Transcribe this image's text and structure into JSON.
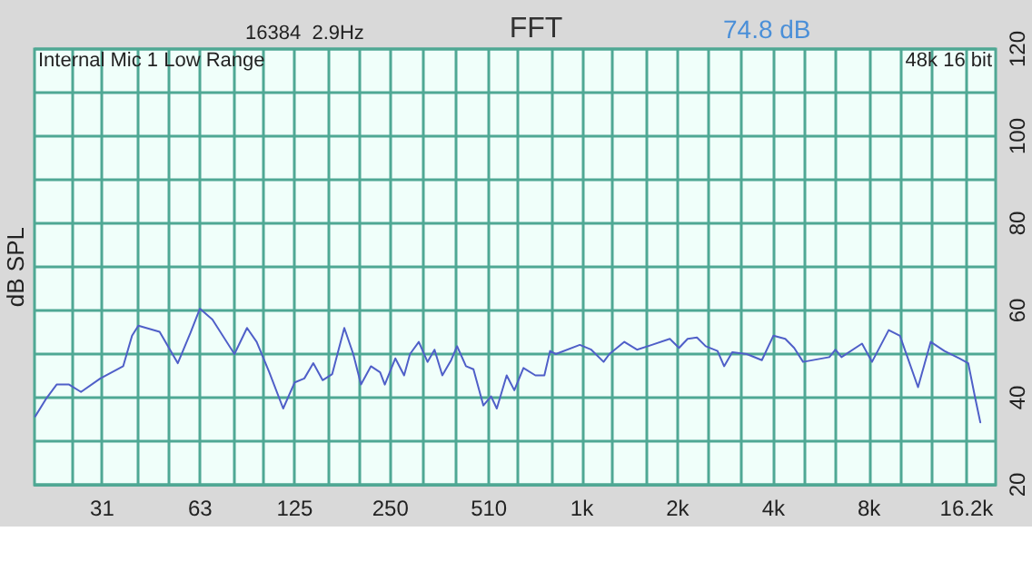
{
  "chart_data": {
    "type": "line",
    "title": "FFT",
    "ylabel": "dB SPL",
    "annotations": [
      "16384  2.9Hz",
      "74.8 dB",
      "Internal Mic 1 Low Range",
      "48k 16 bit"
    ],
    "log": "x",
    "grid": true,
    "marker": "none",
    "line_style": "solid",
    "xlim": [
      19,
      20000
    ],
    "xticks": [
      {
        "value": 25,
        "label": null
      },
      {
        "value": 31,
        "label": "31"
      },
      {
        "value": 40,
        "label": null
      },
      {
        "value": 50,
        "label": null
      },
      {
        "value": 63,
        "label": "63"
      },
      {
        "value": 80,
        "label": null
      },
      {
        "value": 100,
        "label": null
      },
      {
        "value": 125,
        "label": "125"
      },
      {
        "value": 160,
        "label": null
      },
      {
        "value": 200,
        "label": null
      },
      {
        "value": 250,
        "label": "250"
      },
      {
        "value": 315,
        "label": null
      },
      {
        "value": 400,
        "label": null
      },
      {
        "value": 510,
        "label": "510"
      },
      {
        "value": 630,
        "label": null
      },
      {
        "value": 800,
        "label": null
      },
      {
        "value": 1000,
        "label": "1k"
      },
      {
        "value": 1250,
        "label": null
      },
      {
        "value": 1600,
        "label": null
      },
      {
        "value": 2000,
        "label": "2k"
      },
      {
        "value": 2500,
        "label": null
      },
      {
        "value": 3150,
        "label": null
      },
      {
        "value": 4000,
        "label": "4k"
      },
      {
        "value": 5000,
        "label": null
      },
      {
        "value": 6300,
        "label": null
      },
      {
        "value": 8000,
        "label": "8k"
      },
      {
        "value": 10000,
        "label": null
      },
      {
        "value": 12500,
        "label": null
      },
      {
        "value": 16200,
        "label": "16.2k"
      }
    ],
    "ylim": [
      20,
      120
    ],
    "yticks": [
      20,
      {
        "value": 30,
        "label": null
      },
      40,
      {
        "value": 50,
        "label": null
      },
      60,
      {
        "value": 70,
        "label": null
      },
      80,
      {
        "value": 90,
        "label": null
      },
      100,
      {
        "value": 110,
        "label": null
      },
      120
    ],
    "series": [
      {
        "color": "#4f5fc8",
        "x": [
          19.1,
          20.6,
          22.3,
          24.4,
          26.6,
          30.6,
          34.6,
          36.1,
          38.5,
          40.3,
          47,
          53.6,
          58.8,
          62.9,
          68.9,
          80.8,
          88.5,
          94.9,
          104,
          115,
          125,
          134,
          143,
          153,
          164,
          179,
          191,
          202,
          217,
          232,
          240,
          259,
          276,
          288,
          307,
          327,
          344,
          364,
          388,
          405,
          432,
          456,
          490,
          518,
          540,
          580,
          613,
          655,
          714,
          762,
          794,
          828,
          985,
          1070,
          1170,
          1220,
          1360,
          1490,
          1660,
          1890,
          2020,
          2150,
          2300,
          2450,
          2670,
          2800,
          2970,
          3300,
          3680,
          4000,
          4360,
          4650,
          4960,
          6000,
          6270,
          6550,
          7600,
          8170,
          9220,
          10000,
          11400,
          12500,
          13800,
          15400,
          16400,
          17200,
          17900
        ],
        "values": [
          35.7,
          39.6,
          43,
          43,
          41.3,
          44.4,
          46.5,
          47.2,
          54.2,
          56.5,
          55.1,
          47.9,
          54.9,
          60.4,
          57.9,
          50,
          56,
          52.8,
          45.8,
          37.5,
          43.5,
          44.4,
          47.9,
          44,
          45.4,
          56,
          50,
          43,
          47.2,
          45.8,
          43,
          49,
          45.1,
          50,
          52.8,
          48.2,
          51,
          45.1,
          48.6,
          51.8,
          47.2,
          46.5,
          38.2,
          40.3,
          37.5,
          45.1,
          41.7,
          46.8,
          45.1,
          45.1,
          50.7,
          50,
          52.1,
          51,
          48.2,
          50,
          52.8,
          51,
          52.1,
          53.5,
          51.4,
          53.5,
          53.8,
          51.8,
          50.7,
          47.2,
          50.4,
          50,
          48.6,
          54.2,
          53.5,
          51.4,
          48.2,
          49.3,
          51,
          49.3,
          52.4,
          48.2,
          55.5,
          54.2,
          42.4,
          52.8,
          50.7,
          49,
          47.9,
          40.3,
          34.3
        ]
      }
    ]
  }
}
